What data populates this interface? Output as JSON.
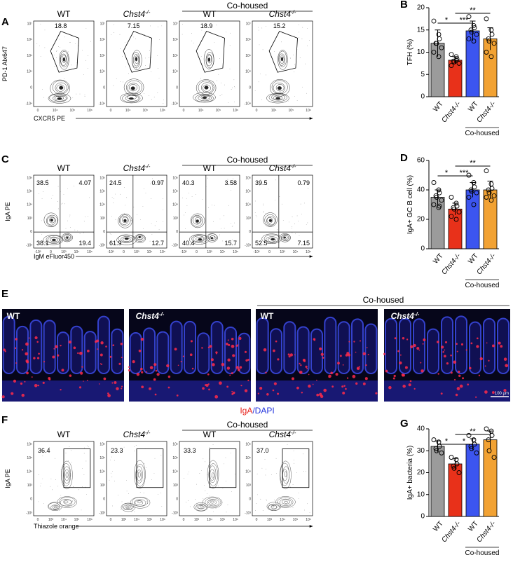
{
  "panel_labels": [
    "A",
    "B",
    "C",
    "D",
    "E",
    "F",
    "G"
  ],
  "groups": {
    "wt": "WT",
    "ko": {
      "gene": "Chst4",
      "sup": "-/-"
    },
    "cohoused": "Co-housed"
  },
  "flow": [
    {
      "ylabel": "PD-1 Alx647",
      "xlabel": "CXCR5 PE",
      "yticks": [
        "-10⁴",
        "0",
        "10⁴",
        "10⁵",
        "10⁶",
        "10⁷"
      ],
      "xticks": [
        "0",
        "10⁴",
        "10⁵",
        "10⁶"
      ],
      "values": [
        [
          "18.8"
        ],
        [
          "7.15"
        ],
        [
          "18.9"
        ],
        [
          "15.2"
        ]
      ]
    },
    {
      "ylabel": "IgA PE",
      "xlabel": "IgM eFluor450",
      "yticks": [
        "-10³",
        "0",
        "10³",
        "10⁴",
        "10⁵",
        "10⁶"
      ],
      "xticks": [
        "-10³",
        "0",
        "10³",
        "10⁴",
        "10⁵"
      ],
      "values": [
        [
          "38.5",
          "4.07",
          "38.1",
          "19.4"
        ],
        [
          "24.5",
          "0.97",
          "61.9",
          "12.7"
        ],
        [
          "40.3",
          "3.58",
          "40.4",
          "15.7"
        ],
        [
          "39.5",
          "0.79",
          "52.5",
          "7.15"
        ]
      ]
    },
    {
      "ylabel": "IgA PE",
      "xlabel": "Thiazole orange",
      "yticks": [
        "-10³",
        "0",
        "10³",
        "10⁴",
        "10⁵",
        "10⁶"
      ],
      "xticks": [
        "0",
        "10³",
        "10⁴",
        "10⁵",
        "10⁶"
      ],
      "values": [
        [
          "36.4"
        ],
        [
          "23.3"
        ],
        [
          "33.3"
        ],
        [
          "37.0"
        ]
      ]
    }
  ],
  "imaging": {
    "legend_red": "IgA",
    "legend_blue": "/DAPI",
    "scale_bar": "100 μm"
  },
  "chart_data": [
    {
      "type": "bar",
      "ylabel": "TFH (%)",
      "categories": [
        "WT",
        "Chst4-/-",
        "WT",
        "Chst4-/-"
      ],
      "values": [
        12,
        8.2,
        14.8,
        13
      ],
      "errors": [
        3,
        0.8,
        2.2,
        2.5
      ],
      "points": [
        [
          17,
          14,
          13,
          12,
          12,
          11,
          10,
          9
        ],
        [
          9.5,
          9,
          8.5,
          8,
          7.8,
          7.5,
          7,
          8.2
        ],
        [
          18,
          16,
          15.5,
          15,
          14.5,
          14,
          13,
          12.5
        ],
        [
          17.5,
          15,
          14,
          13,
          12.5,
          12,
          10,
          9
        ]
      ],
      "colors": [
        "#9b9b9b",
        "#e8311a",
        "#3c55f0",
        "#f2a233"
      ],
      "ylim": [
        0,
        20
      ],
      "yticks": [
        0,
        5,
        10,
        15,
        20
      ],
      "significance": [
        "*",
        "***",
        "**"
      ]
    },
    {
      "type": "bar",
      "ylabel": "IgA+ GC B cell (%)",
      "categories": [
        "WT",
        "Chst4-/-",
        "WT",
        "Chst4-/-"
      ],
      "values": [
        35,
        27,
        40,
        40
      ],
      "errors": [
        5,
        4,
        5,
        6
      ],
      "points": [
        [
          45,
          40,
          38,
          36,
          35,
          33,
          30,
          28,
          29
        ],
        [
          35,
          31,
          29,
          28,
          27,
          25,
          22,
          20
        ],
        [
          50,
          45,
          42,
          40,
          39,
          38,
          35,
          30
        ],
        [
          53,
          44,
          41,
          40,
          38,
          36,
          35,
          33
        ]
      ],
      "colors": [
        "#9b9b9b",
        "#e8311a",
        "#3c55f0",
        "#f2a233"
      ],
      "ylim": [
        0,
        60
      ],
      "yticks": [
        0,
        20,
        40,
        60
      ],
      "significance": [
        "*",
        "***",
        "**"
      ]
    },
    {
      "type": "bar",
      "ylabel": "IgA+ bacteria (%)",
      "categories": [
        "WT",
        "Chst4-/-",
        "WT",
        "Chst4-/-"
      ],
      "values": [
        32,
        24,
        33,
        35
      ],
      "errors": [
        2.5,
        2.5,
        2.5,
        4
      ],
      "points": [
        [
          35,
          34,
          32,
          31,
          30,
          29
        ],
        [
          27,
          26,
          24,
          23,
          22,
          20
        ],
        [
          37,
          35,
          33,
          32,
          31,
          29
        ],
        [
          40,
          39,
          37,
          35,
          30,
          27
        ]
      ],
      "colors": [
        "#9b9b9b",
        "#e8311a",
        "#3c55f0",
        "#f2a233"
      ],
      "ylim": [
        0,
        40
      ],
      "yticks": [
        0,
        10,
        20,
        30,
        40
      ],
      "significance": [
        "*",
        "*",
        "**"
      ]
    }
  ]
}
